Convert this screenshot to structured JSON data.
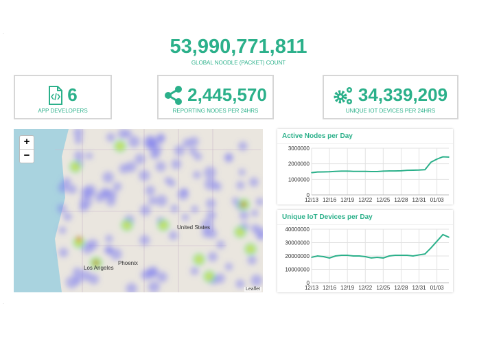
{
  "total": {
    "value": "53,990,771,811",
    "label": "GLOBAL NOODLE (PACKET) COUNT"
  },
  "stats": [
    {
      "icon": "code-file-icon",
      "value": "6",
      "label": "APP DEVELOPERS"
    },
    {
      "icon": "share-icon",
      "value": "2,445,570",
      "label": "REPORTING NODES PER 24HRS"
    },
    {
      "icon": "gears-icon",
      "value": "34,339,209",
      "label": "UNIQUE IOT DEVICES PER 24HRS"
    }
  ],
  "map": {
    "zoom_in": "+",
    "zoom_out": "−",
    "attribution": "Leaflet",
    "labels": [
      "United States",
      "Los Angeles",
      "Phoenix"
    ]
  },
  "colors": {
    "accent": "#2bb08a"
  },
  "chart_data": [
    {
      "type": "line",
      "title": "Active Nodes per Day",
      "ylim": [
        0,
        3000000
      ],
      "yticks": [
        "3000000",
        "2000000",
        "1000000",
        "0"
      ],
      "xticks": [
        "12/13",
        "12/16",
        "12/19",
        "12/22",
        "12/25",
        "12/28",
        "12/31",
        "01/03"
      ],
      "x": [
        "12/13",
        "12/14",
        "12/15",
        "12/16",
        "12/17",
        "12/18",
        "12/19",
        "12/20",
        "12/21",
        "12/22",
        "12/23",
        "12/24",
        "12/25",
        "12/26",
        "12/27",
        "12/28",
        "12/29",
        "12/30",
        "12/31",
        "01/01",
        "01/02",
        "01/03",
        "01/04",
        "01/05"
      ],
      "values": [
        1430000,
        1470000,
        1480000,
        1490000,
        1510000,
        1530000,
        1530000,
        1510000,
        1510000,
        1510000,
        1500000,
        1500000,
        1530000,
        1540000,
        1540000,
        1550000,
        1580000,
        1590000,
        1600000,
        1620000,
        2100000,
        2300000,
        2450000,
        2430000
      ]
    },
    {
      "type": "line",
      "title": "Unique IoT Devices per Day",
      "ylim": [
        0,
        40000000
      ],
      "yticks": [
        "40000000",
        "30000000",
        "20000000",
        "10000000",
        "0"
      ],
      "xticks": [
        "12/13",
        "12/16",
        "12/19",
        "12/22",
        "12/25",
        "12/28",
        "12/31",
        "01/03"
      ],
      "x": [
        "12/13",
        "12/14",
        "12/15",
        "12/16",
        "12/17",
        "12/18",
        "12/19",
        "12/20",
        "12/21",
        "12/22",
        "12/23",
        "12/24",
        "12/25",
        "12/26",
        "12/27",
        "12/28",
        "12/29",
        "12/30",
        "12/31",
        "01/01",
        "01/02",
        "01/03",
        "01/04",
        "01/05"
      ],
      "values": [
        19000000,
        20000000,
        19500000,
        18500000,
        20000000,
        20500000,
        20500000,
        20000000,
        20000000,
        19500000,
        18500000,
        19000000,
        18500000,
        20000000,
        20500000,
        20500000,
        20500000,
        20000000,
        20800000,
        21500000,
        26000000,
        31000000,
        36000000,
        34000000
      ]
    }
  ]
}
